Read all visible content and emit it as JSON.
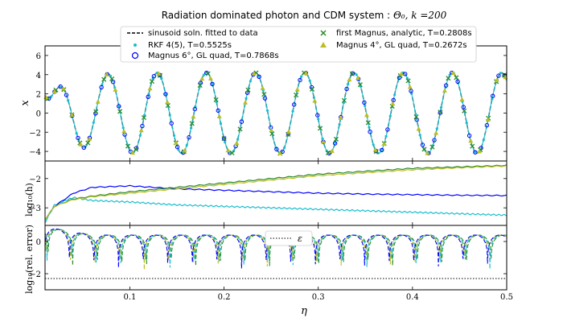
{
  "figure": {
    "title_text": "Radiation dominated photon and CDM system : ",
    "title_math": "Θ₀, k =200"
  },
  "chart_data": [
    {
      "type": "line",
      "panel": "top",
      "ylabel": "x",
      "xlim": [
        0.01,
        0.5
      ],
      "ylim": [
        -5,
        7
      ],
      "yticks": [
        -4,
        -2,
        0,
        2,
        4,
        6
      ],
      "model": {
        "omega": 120.3,
        "phase": 3.33,
        "amp_max": 4.2,
        "start_value": 1.8,
        "decay": 0.02
      },
      "legend": {
        "placement": "top",
        "entries": [
          {
            "key": "fit",
            "label": "sinusoid soln. fitted to data",
            "color": "#000000",
            "marker": "dashed-line"
          },
          {
            "key": "magnus1",
            "label": "first Magnus, analytic, T=0.2808s",
            "color": "#2a8a2a",
            "marker": "x"
          },
          {
            "key": "rkf",
            "label": "RKF 4(5), T=0.5525s",
            "color": "#17becf",
            "marker": "dot"
          },
          {
            "key": "magnus4",
            "label": "Magnus 4°, GL quad, T=0.2672s",
            "color": "#bcbd22",
            "marker": "triangle"
          },
          {
            "key": "magnus6",
            "label": "Magnus 6°, GL quad, T=0.7868s",
            "color": "#0000ff",
            "marker": "circle"
          }
        ]
      }
    },
    {
      "type": "line",
      "panel": "middle",
      "ylabel": "log₁₀(h)",
      "xlim": [
        0.01,
        0.5
      ],
      "ylim": [
        -3.6,
        -1.4
      ],
      "yticks": [
        -3,
        -2
      ],
      "series": [
        {
          "name": "RKF 4(5)",
          "color": "#17becf",
          "x": [
            0.01,
            0.02,
            0.04,
            0.06,
            0.1,
            0.15,
            0.2,
            0.25,
            0.3,
            0.35,
            0.4,
            0.45,
            0.5
          ],
          "y": [
            -3.5,
            -2.9,
            -2.65,
            -2.75,
            -2.8,
            -2.9,
            -2.95,
            -3.0,
            -3.05,
            -3.1,
            -3.15,
            -3.2,
            -3.25
          ]
        },
        {
          "name": "Magnus 6°, GL quad",
          "color": "#0000ff",
          "x": [
            0.01,
            0.02,
            0.04,
            0.06,
            0.1,
            0.15,
            0.2,
            0.25,
            0.3,
            0.35,
            0.4,
            0.45,
            0.5
          ],
          "y": [
            -3.4,
            -2.95,
            -2.5,
            -2.3,
            -2.25,
            -2.35,
            -2.4,
            -2.45,
            -2.5,
            -2.53,
            -2.55,
            -2.57,
            -2.58
          ]
        },
        {
          "name": "first Magnus, analytic",
          "color": "#2a8a2a",
          "x": [
            0.01,
            0.02,
            0.04,
            0.06,
            0.1,
            0.15,
            0.2,
            0.25,
            0.3,
            0.35,
            0.4,
            0.45,
            0.5
          ],
          "y": [
            -3.4,
            -2.95,
            -2.7,
            -2.6,
            -2.45,
            -2.3,
            -2.15,
            -2.0,
            -1.85,
            -1.75,
            -1.65,
            -1.6,
            -1.55
          ]
        },
        {
          "name": "Magnus 4°, GL quad",
          "color": "#bcbd22",
          "x": [
            0.01,
            0.02,
            0.04,
            0.06,
            0.1,
            0.15,
            0.2,
            0.25,
            0.3,
            0.35,
            0.4,
            0.45,
            0.5
          ],
          "y": [
            -3.4,
            -2.95,
            -2.72,
            -2.62,
            -2.5,
            -2.35,
            -2.2,
            -2.05,
            -1.9,
            -1.8,
            -1.7,
            -1.63,
            -1.57
          ]
        }
      ]
    },
    {
      "type": "line",
      "panel": "bottom",
      "ylabel": "log₁₀(rel. error)",
      "xlabel": "η",
      "xlim": [
        0.01,
        0.5
      ],
      "ylim": [
        -3.0,
        1.0
      ],
      "yticks": [
        -2,
        0
      ],
      "xticks": [
        0.1,
        0.2,
        0.3,
        0.4,
        0.5
      ],
      "epsilon_level": -2.3,
      "legend": {
        "placement": "top-center",
        "entries": [
          {
            "label": "ε",
            "style": "dotted",
            "color": "#000000"
          }
        ]
      },
      "series": [
        {
          "name": "first Magnus, analytic",
          "color": "#2a8a2a"
        },
        {
          "name": "RKF 4(5)",
          "color": "#17becf"
        },
        {
          "name": "Magnus 4°, GL quad",
          "color": "#bcbd22"
        },
        {
          "name": "Magnus 6°, GL quad",
          "color": "#0000ff"
        }
      ]
    }
  ]
}
